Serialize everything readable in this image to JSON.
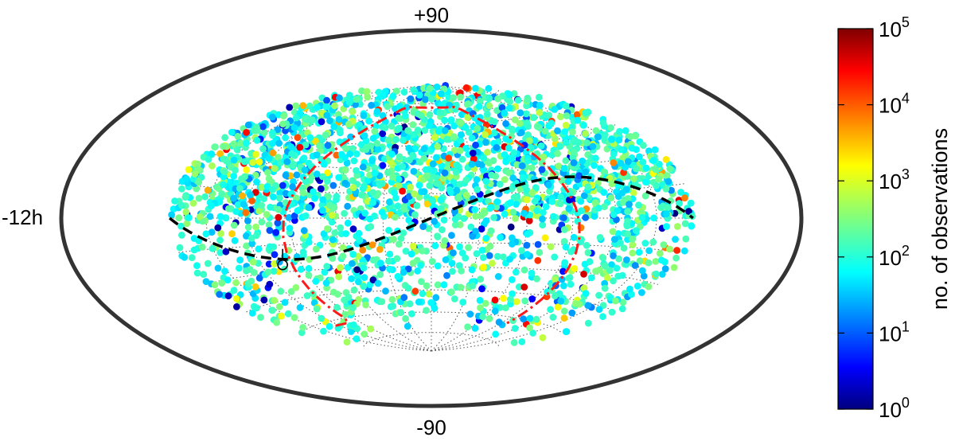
{
  "chart_data": {
    "type": "scatter",
    "projection": "aitoff-hammer-equal-area",
    "title": "",
    "labels": {
      "north_pole": "+90",
      "south_pole": "-90",
      "left_edge": "-12h"
    },
    "grid": true,
    "colorbar": {
      "label": "no. of observations",
      "scale": "log",
      "colormap": "jet",
      "ticks": [
        {
          "base": "10",
          "exp": "0",
          "value": 1
        },
        {
          "base": "10",
          "exp": "1",
          "value": 10
        },
        {
          "base": "10",
          "exp": "2",
          "value": 100
        },
        {
          "base": "10",
          "exp": "3",
          "value": 1000
        },
        {
          "base": "10",
          "exp": "4",
          "value": 10000
        },
        {
          "base": "10",
          "exp": "5",
          "value": 100000
        }
      ],
      "range": [
        1,
        100000
      ]
    },
    "ecliptic_curve": {
      "style": "dashed",
      "color": "#000000",
      "amplitude_deg": 23.4
    },
    "field_boundary_curve": {
      "style": "dash-dot",
      "color": "#ff0000"
    },
    "marker": {
      "symbol": "circle-open",
      "lon_deg": -104,
      "lat_deg": -26
    },
    "sources": {
      "count": 2600,
      "note_lat_range": [
        -88,
        88
      ],
      "typical_log_value": 2.1
    }
  }
}
